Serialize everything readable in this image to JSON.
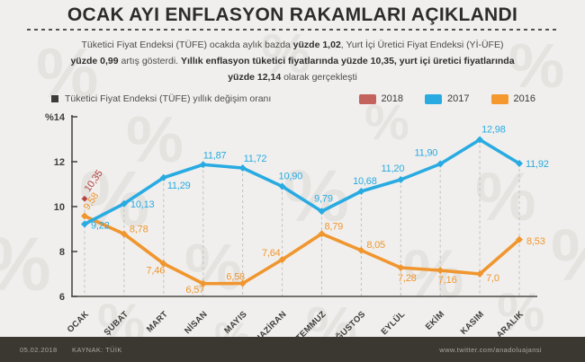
{
  "title": "OCAK AYI ENFLASYON RAKAMLARI AÇIKLANDI",
  "subtitle_lines": [
    [
      {
        "text": "Tüketici Fiyat Endeksi (TÜFE) ocakda aylık bazda ",
        "bold": false
      },
      {
        "text": "yüzde 1,02",
        "bold": true
      },
      {
        "text": ", Yurt İçi Üretici Fiyat Endeksi (Yİ-ÜFE)",
        "bold": false
      }
    ],
    [
      {
        "text": "yüzde 0,99",
        "bold": true
      },
      {
        "text": " artış gösterdi. ",
        "bold": false
      },
      {
        "text": "Yıllık enflasyon tüketici fiyatlarında yüzde 10,35, yurt içi üretici fiyatlarında",
        "bold": true
      }
    ],
    [
      {
        "text": "yüzde 12,14",
        "bold": true
      },
      {
        "text": " olarak gerçekleşti",
        "bold": false
      }
    ]
  ],
  "legend": {
    "series_label": "Tüketici Fiyat Endeksi (TÜFE) yıllık değişim oranı",
    "years": [
      {
        "label": "2018",
        "color": "#c4625e"
      },
      {
        "label": "2017",
        "color": "#29abe2"
      },
      {
        "label": "2016",
        "color": "#f5992e"
      }
    ]
  },
  "chart_data": {
    "type": "line",
    "title": "Tüketici Fiyat Endeksi (TÜFE) yıllık değişim oranı",
    "categories": [
      "OCAK",
      "ŞUBAT",
      "MART",
      "NİSAN",
      "MAYIS",
      "HAZİRAN",
      "TEMMUZ",
      "AĞUSTOS",
      "EYLÜL",
      "EKİM",
      "KASIM",
      "ARALIK"
    ],
    "ylim": [
      6,
      14
    ],
    "yticks": [
      {
        "value": 14,
        "label": "%14"
      },
      {
        "value": 12,
        "label": "12"
      },
      {
        "value": 10,
        "label": "10"
      },
      {
        "value": 8,
        "label": "8"
      },
      {
        "value": 6,
        "label": "6"
      }
    ],
    "grid": false,
    "legend_position": "top-right",
    "series": [
      {
        "name": "2018",
        "color": "#b5433f",
        "values": [
          10.35,
          null,
          null,
          null,
          null,
          null,
          null,
          null,
          null,
          null,
          null,
          null
        ],
        "labels": [
          "10,35",
          null,
          null,
          null,
          null,
          null,
          null,
          null,
          null,
          null,
          null,
          null
        ]
      },
      {
        "name": "2017",
        "color": "#29abe2",
        "values": [
          9.22,
          10.13,
          11.29,
          11.87,
          11.72,
          10.9,
          9.79,
          10.68,
          11.2,
          11.9,
          12.98,
          11.92
        ],
        "labels": [
          "9,22",
          "10,13",
          "11,29",
          "11,87",
          "11,72",
          "10,90",
          "9,79",
          "10,68",
          "11,20",
          "11,90",
          "12,98",
          "11,92"
        ]
      },
      {
        "name": "2016",
        "color": "#f0962f",
        "values": [
          9.58,
          8.78,
          7.46,
          6.57,
          6.58,
          7.64,
          8.79,
          8.05,
          7.28,
          7.16,
          7.0,
          8.53
        ],
        "labels": [
          "9,58",
          "8,78",
          "7,46",
          "6,57",
          "6,58",
          "7,64",
          "8,79",
          "8,05",
          "7,28",
          "7,16",
          "7,0",
          "8,53"
        ]
      }
    ]
  },
  "footer": {
    "date": "05.02.2018",
    "source": "KAYNAK: TÜİK",
    "url": "www.twitter.com/anadoluajansi"
  },
  "decor": {
    "watermark_glyph": "%"
  }
}
